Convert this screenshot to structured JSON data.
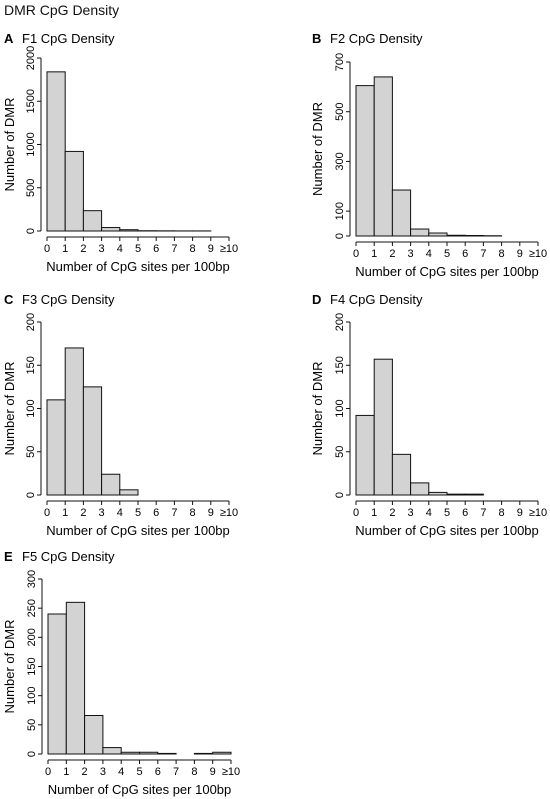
{
  "page_title": "DMR CpG Density",
  "chart_data": [
    {
      "type": "bar",
      "panel_letter": "A",
      "title": "F1 CpG Density",
      "xlabel": "Number of CpG sites per 100bp",
      "ylabel": "Number of DMR",
      "x_ticks": [
        "0",
        "1",
        "2",
        "3",
        "4",
        "5",
        "6",
        "7",
        "8",
        "9",
        "≥10"
      ],
      "bin_edges": [
        0,
        1,
        2,
        3,
        4,
        5,
        6,
        7,
        8,
        9,
        10
      ],
      "values": [
        1840,
        920,
        235,
        40,
        15,
        3,
        2,
        1,
        1,
        0
      ],
      "y_ticks": [
        0,
        500,
        1000,
        1500,
        2000
      ],
      "ylim": [
        0,
        2000
      ],
      "bar_color": "#d3d3d3",
      "grid": false
    },
    {
      "type": "bar",
      "panel_letter": "B",
      "title": "F2 CpG Density",
      "xlabel": "Number of CpG sites per 100bp",
      "ylabel": "Number of DMR",
      "x_ticks": [
        "0",
        "1",
        "2",
        "3",
        "4",
        "5",
        "6",
        "7",
        "8",
        "9",
        "≥10"
      ],
      "bin_edges": [
        0,
        1,
        2,
        3,
        4,
        5,
        6,
        7,
        8,
        9,
        10
      ],
      "values": [
        605,
        640,
        185,
        28,
        12,
        3,
        2,
        1,
        0,
        0
      ],
      "y_ticks": [
        0,
        100,
        300,
        500,
        700
      ],
      "ylim": [
        0,
        700
      ],
      "bar_color": "#d3d3d3",
      "grid": false
    },
    {
      "type": "bar",
      "panel_letter": "C",
      "title": "F3 CpG Density",
      "xlabel": "Number of CpG sites per 100bp",
      "ylabel": "Number of DMR",
      "x_ticks": [
        "0",
        "1",
        "2",
        "3",
        "4",
        "5",
        "6",
        "7",
        "8",
        "9",
        "≥10"
      ],
      "bin_edges": [
        0,
        1,
        2,
        3,
        4,
        5,
        6,
        7,
        8,
        9,
        10
      ],
      "values": [
        110,
        170,
        125,
        24,
        6,
        0,
        0,
        0,
        0,
        0
      ],
      "y_ticks": [
        0,
        50,
        100,
        150,
        200
      ],
      "ylim": [
        0,
        200
      ],
      "bar_color": "#d3d3d3",
      "grid": false
    },
    {
      "type": "bar",
      "panel_letter": "D",
      "title": "F4 CpG Density",
      "xlabel": "Number of CpG sites per 100bp",
      "ylabel": "Number of DMR",
      "x_ticks": [
        "0",
        "1",
        "2",
        "3",
        "4",
        "5",
        "6",
        "7",
        "8",
        "9",
        "≥10"
      ],
      "bin_edges": [
        0,
        1,
        2,
        3,
        4,
        5,
        6,
        7,
        8,
        9,
        10
      ],
      "values": [
        92,
        157,
        47,
        14,
        3,
        1,
        1,
        0,
        0,
        0
      ],
      "y_ticks": [
        0,
        50,
        100,
        150,
        200
      ],
      "ylim": [
        0,
        200
      ],
      "bar_color": "#d3d3d3",
      "grid": false
    },
    {
      "type": "bar",
      "panel_letter": "E",
      "title": "F5 CpG Density",
      "xlabel": "Number of CpG sites per 100bp",
      "ylabel": "Number of DMR",
      "x_ticks": [
        "0",
        "1",
        "2",
        "3",
        "4",
        "5",
        "6",
        "7",
        "8",
        "9",
        "≥10"
      ],
      "bin_edges": [
        0,
        1,
        2,
        3,
        4,
        5,
        6,
        7,
        8,
        9,
        10
      ],
      "values": [
        240,
        260,
        66,
        11,
        3,
        3,
        1,
        0,
        1,
        3
      ],
      "y_ticks": [
        0,
        50,
        100,
        150,
        200,
        250,
        300
      ],
      "ylim": [
        0,
        300
      ],
      "bar_color": "#d3d3d3",
      "grid": false
    }
  ]
}
